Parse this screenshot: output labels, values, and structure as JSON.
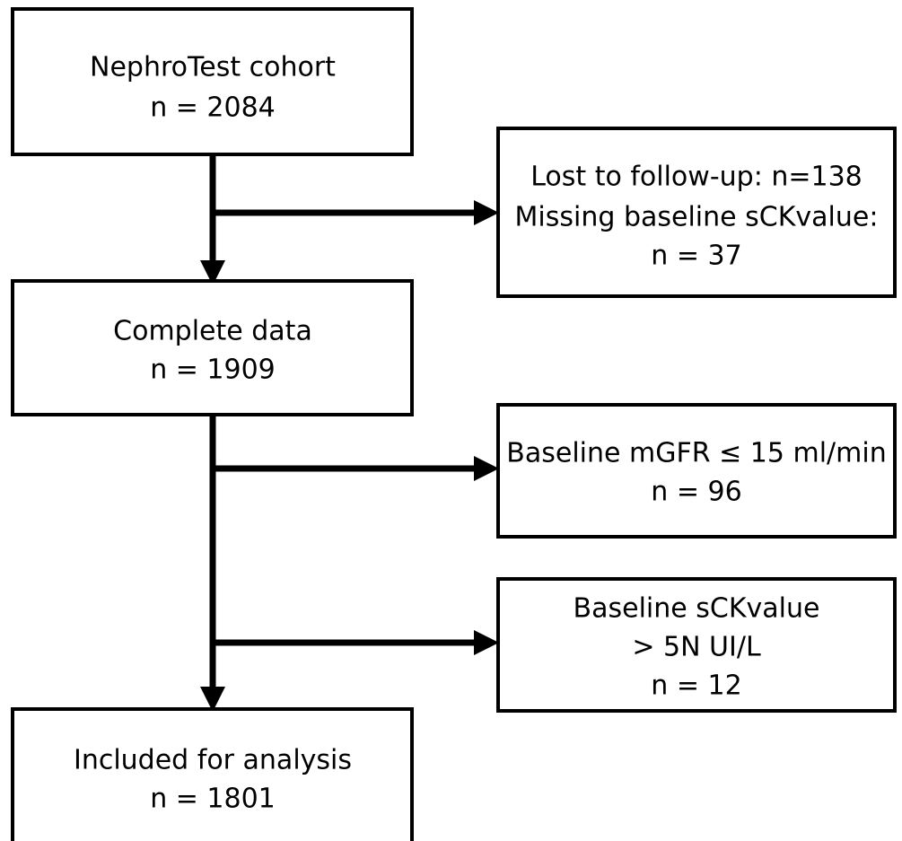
{
  "nodes": [
    {
      "lines": [
        "NephroTest cohort",
        "n = 2084"
      ]
    },
    {
      "lines": [
        "Lost to follow-up: n=138",
        "Missing baseline sCKvalue:",
        "n = 37"
      ]
    },
    {
      "lines": [
        "Complete data",
        "n = 1909"
      ]
    },
    {
      "lines": [
        "Baseline mGFR ≤ 15 ml/min",
        "n = 96"
      ]
    },
    {
      "lines": [
        "Baseline sCKvalue",
        "> 5N UI/L",
        "n = 12"
      ]
    },
    {
      "lines": [
        "Included for analysis",
        "n = 1801"
      ]
    }
  ]
}
